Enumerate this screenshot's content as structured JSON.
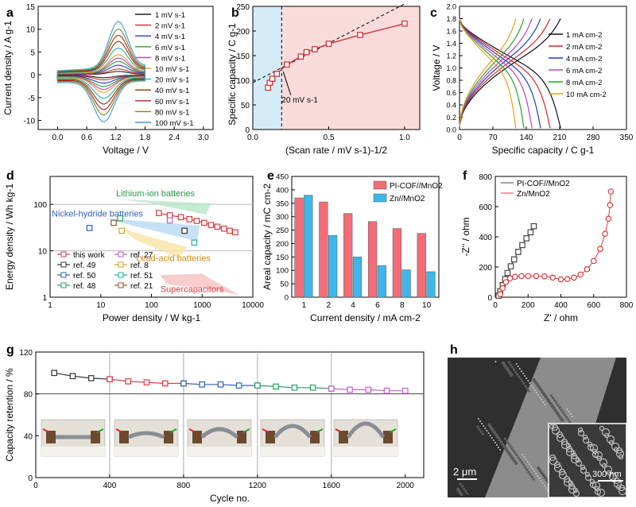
{
  "chart_data": [
    {
      "panel": "a",
      "type": "line",
      "xlabel": "Voltage / V",
      "ylabel": "Current density / A g-1",
      "xlim": [
        -0.4,
        3.2
      ],
      "ylim": [
        -12,
        15
      ],
      "xticks": [
        "0.0",
        "0.6",
        "1.2",
        "1.8",
        "2.4",
        "3.0"
      ],
      "yticks": [
        "-10",
        "-5",
        "0",
        "5",
        "10",
        "15"
      ],
      "legend": [
        {
          "name": "1 mV s-1",
          "color": "#222222",
          "amp": 0.7
        },
        {
          "name": "2 mV s-1",
          "color": "#d62728",
          "amp": 1.2
        },
        {
          "name": "4 mV s-1",
          "color": "#1f3fbf",
          "amp": 2.0
        },
        {
          "name": "6 mV s-1",
          "color": "#2ca02c",
          "amp": 2.8
        },
        {
          "name": "8 mV s-1",
          "color": "#c040c0",
          "amp": 3.5
        },
        {
          "name": "10 mV s-1",
          "color": "#e6a020",
          "amp": 4.2
        },
        {
          "name": "20 mV s-1",
          "color": "#20b0b0",
          "amp": 5.6
        },
        {
          "name": "40 mV s-1",
          "color": "#7b3f00",
          "amp": 7.0
        },
        {
          "name": "60 mV s-1",
          "color": "#b22222",
          "amp": 8.3
        },
        {
          "name": "80 mV s-1",
          "color": "#6b8e23",
          "amp": 9.6
        },
        {
          "name": "100 mV s-1",
          "color": "#3a9ad9",
          "amp": 11.2
        }
      ]
    },
    {
      "panel": "b",
      "type": "scatter",
      "xlabel": "(Scan rate / mV s-1)-1/2",
      "ylabel": "Specific capacity / C g-1",
      "xlim": [
        0,
        1.1
      ],
      "ylim": [
        0,
        250
      ],
      "xticks": [
        "0.0",
        "0.5",
        "1.0"
      ],
      "yticks": [
        "0",
        "50",
        "100",
        "150",
        "200",
        "250"
      ],
      "x": [
        0.1,
        0.112,
        0.129,
        0.158,
        0.224,
        0.316,
        0.354,
        0.408,
        0.5,
        0.707,
        1.0
      ],
      "y": [
        85,
        95,
        103,
        113,
        132,
        148,
        157,
        163,
        174,
        192,
        215
      ],
      "split_x": 0.19,
      "annotation": "20 mV s-1"
    },
    {
      "panel": "c",
      "type": "line",
      "xlabel": "Specific capacity / C g-1",
      "ylabel": "Voltage / V",
      "xlim": [
        0,
        350
      ],
      "ylim": [
        0,
        2.0
      ],
      "xticks": [
        "0",
        "70",
        "140",
        "210",
        "280",
        "350"
      ],
      "yticks": [
        "0.0",
        "0.2",
        "0.4",
        "0.6",
        "0.8",
        "1.0",
        "1.2",
        "1.4",
        "1.6",
        "1.8",
        "2.0"
      ],
      "series": [
        {
          "name": "1 mA cm-2",
          "color": "#111111",
          "cap": 212
        },
        {
          "name": "2 mA cm-2",
          "color": "#d62728",
          "cap": 190
        },
        {
          "name": "4 mA cm-2",
          "color": "#1f3fbf",
          "cap": 170
        },
        {
          "name": "6 mA cm-2",
          "color": "#c040c0",
          "cap": 152
        },
        {
          "name": "8 mA cm-2",
          "color": "#2ca02c",
          "cap": 135
        },
        {
          "name": "10 mA cm-2",
          "color": "#e6a020",
          "cap": 118
        }
      ]
    },
    {
      "panel": "d",
      "type": "scatter",
      "xlabel": "Power density / W kg-1",
      "ylabel": "Energy density / Wh kg-1",
      "xlim": [
        1,
        10000
      ],
      "ylim": [
        1,
        400
      ],
      "xticks": [
        "1",
        "10",
        "100",
        "1000",
        "10000"
      ],
      "yticks": [
        "1",
        "10",
        "100"
      ],
      "regions": [
        "Lithium-ion batteries",
        "Nickel-hydride batteries",
        "Lead-acid batteries",
        "Supercapacitors"
      ],
      "this_work": {
        "x": [
          140,
          230,
          380,
          560,
          780,
          1100,
          1500,
          2000,
          2700,
          3500,
          4500
        ],
        "y": [
          65,
          58,
          53,
          48,
          44,
          40,
          36,
          33,
          30,
          27,
          25
        ]
      },
      "refs": [
        {
          "name": "this work",
          "color": "#e0393e",
          "x": 0,
          "y": 0
        },
        {
          "name": "ref. 49",
          "color": "#333333",
          "x": 450,
          "y": 27
        },
        {
          "name": "ref. 50",
          "color": "#2f5fbf",
          "x": 6,
          "y": 31
        },
        {
          "name": "ref. 48",
          "color": "#2ca060",
          "x": 24,
          "y": 50
        },
        {
          "name": "ref. 27",
          "color": "#c060d0",
          "x": 230,
          "y": 45
        },
        {
          "name": "ref. 8",
          "color": "#d4a020",
          "x": 26,
          "y": 27
        },
        {
          "name": "ref. 51",
          "color": "#20b0a0",
          "x": 700,
          "y": 15
        },
        {
          "name": "ref. 21",
          "color": "#8b5a2b",
          "x": 18,
          "y": 40
        }
      ]
    },
    {
      "panel": "e",
      "type": "bar",
      "xlabel": "Current density / mA cm-2",
      "ylabel": "Areal capacity / mC cm-2",
      "ylim": [
        0,
        450
      ],
      "yticks": [
        "0",
        "50",
        "100",
        "150",
        "200",
        "250",
        "300",
        "350",
        "400",
        "450"
      ],
      "categories": [
        "1",
        "2",
        "4",
        "6",
        "8",
        "10"
      ],
      "series": [
        {
          "name": "PI-COF//MnO2",
          "color": "#f26d77",
          "values": [
            370,
            355,
            312,
            282,
            256,
            238
          ]
        },
        {
          "name": "Zn//MnO2",
          "color": "#3fb6ea",
          "values": [
            380,
            230,
            150,
            118,
            102,
            95
          ]
        }
      ]
    },
    {
      "panel": "f",
      "type": "scatter",
      "xlabel": "Z' / ohm",
      "ylabel": "-Z'' / ohm",
      "xlim": [
        0,
        800
      ],
      "ylim": [
        0,
        800
      ],
      "xticks": [
        "0",
        "200",
        "400",
        "600",
        "800"
      ],
      "yticks": [
        "0",
        "200",
        "400",
        "600",
        "800"
      ],
      "series": [
        {
          "name": "PI-COF//MnO2",
          "color": "#444444",
          "x": [
            20,
            30,
            45,
            60,
            75,
            95,
            115,
            140,
            165,
            190,
            215,
            235
          ],
          "y": [
            10,
            40,
            80,
            120,
            160,
            205,
            250,
            300,
            345,
            390,
            430,
            470
          ]
        },
        {
          "name": "Zn/MnO2",
          "color": "#e0393e",
          "x": [
            30,
            45,
            65,
            90,
            120,
            160,
            200,
            250,
            300,
            350,
            400,
            440,
            480,
            520,
            560,
            600,
            640,
            670,
            690,
            700,
            705
          ],
          "y": [
            20,
            60,
            100,
            125,
            135,
            140,
            140,
            140,
            138,
            130,
            118,
            120,
            130,
            150,
            185,
            240,
            320,
            420,
            520,
            610,
            700
          ]
        }
      ]
    },
    {
      "panel": "g",
      "type": "line",
      "xlabel": "Cycle no.",
      "ylabel": "Capacity retention / %",
      "xlim": [
        0,
        2100
      ],
      "ylim": [
        0,
        120
      ],
      "xticks": [
        "0",
        "400",
        "800",
        "1200",
        "1600",
        "2000"
      ],
      "yticks": [
        "0",
        "40",
        "80",
        "120"
      ],
      "segments": [
        {
          "color": "#333333",
          "x": [
            100,
            200,
            300,
            400
          ],
          "y": [
            100,
            97,
            95,
            94
          ]
        },
        {
          "color": "#e0393e",
          "x": [
            400,
            500,
            600,
            700,
            800
          ],
          "y": [
            94,
            92,
            91,
            90,
            90
          ]
        },
        {
          "color": "#2f5fbf",
          "x": [
            800,
            900,
            1000,
            1100,
            1200
          ],
          "y": [
            90,
            89,
            89,
            88,
            88
          ]
        },
        {
          "color": "#2ca060",
          "x": [
            1200,
            1300,
            1400,
            1500,
            1600
          ],
          "y": [
            88,
            87,
            86,
            86,
            85
          ]
        },
        {
          "color": "#c060d0",
          "x": [
            1600,
            1700,
            1800,
            1900,
            2000
          ],
          "y": [
            85,
            84,
            84,
            83,
            83
          ]
        }
      ]
    }
  ],
  "panel_labels": [
    "a",
    "b",
    "c",
    "d",
    "e",
    "f",
    "g",
    "h"
  ],
  "image_h": {
    "scale_main": "2 μm",
    "scale_inset": "300 nm"
  }
}
